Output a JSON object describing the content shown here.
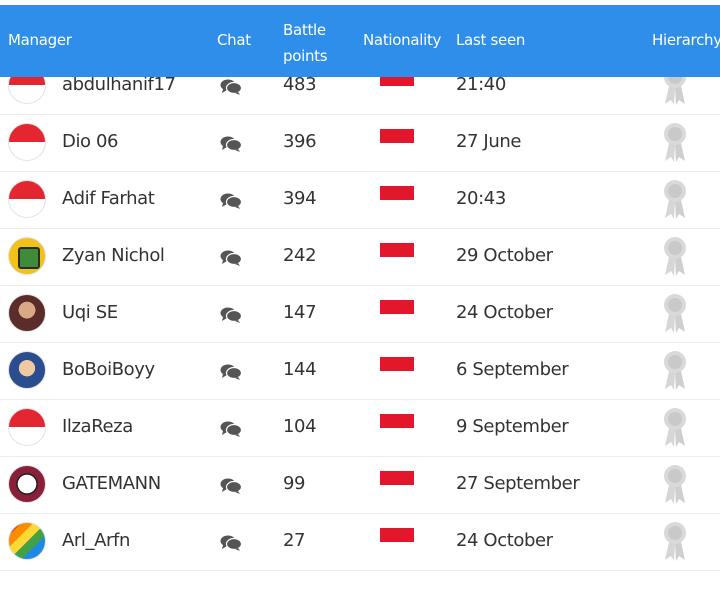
{
  "header": {
    "manager": "Manager",
    "chat": "Chat",
    "battle_line1": "Battle",
    "battle_line2": "points",
    "nationality": "Nationality",
    "last_seen": "Last seen",
    "hierarchy": "Hierarchy"
  },
  "colors": {
    "header_bg": "#2f8eea",
    "flag_red": "#e3172b",
    "text": "#333333"
  },
  "rows": [
    {
      "name": "abdulhanif17",
      "points": "483",
      "last_seen": "21:40",
      "avatar": "flag-avatar",
      "nationality": "indonesia-flag"
    },
    {
      "name": "Dio 06",
      "points": "396",
      "last_seen": "27 June",
      "avatar": "flag-avatar",
      "nationality": "indonesia-flag"
    },
    {
      "name": "Adif Farhat",
      "points": "394",
      "last_seen": "20:43",
      "avatar": "flag-avatar",
      "nationality": "indonesia-flag"
    },
    {
      "name": "Zyan Nichol",
      "points": "242",
      "last_seen": "29 October",
      "avatar": "green-board-avatar",
      "nationality": "indonesia-flag"
    },
    {
      "name": "Uqi SE",
      "points": "147",
      "last_seen": "24 October",
      "avatar": "man-avatar",
      "nationality": "indonesia-flag"
    },
    {
      "name": "BoBoiBoyy",
      "points": "144",
      "last_seen": "6 September",
      "avatar": "boy-avatar",
      "nationality": "indonesia-flag"
    },
    {
      "name": "IlzaReza",
      "points": "104",
      "last_seen": "9 September",
      "avatar": "flag-avatar",
      "nationality": "indonesia-flag"
    },
    {
      "name": "GATEMANN",
      "points": "99",
      "last_seen": "27 September",
      "avatar": "football-avatar",
      "nationality": "indonesia-flag"
    },
    {
      "name": "Arl_Arfn",
      "points": "27",
      "last_seen": "24 October",
      "avatar": "rainbow-avatar",
      "nationality": "indonesia-flag"
    }
  ]
}
